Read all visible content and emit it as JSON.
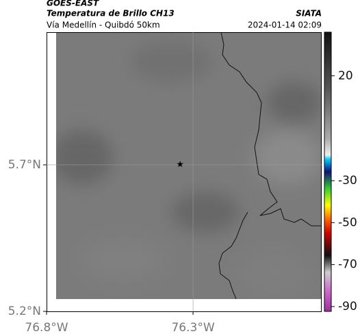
{
  "header": {
    "title": "GOES-EAST",
    "subtitle": "Temperatura de Brillo CH13",
    "route": "Vía Medellín - Quibdó 50km",
    "source": "SIATA",
    "timestamp": "2024-01-14 02:09"
  },
  "map": {
    "xlim": [
      -76.8,
      -75.861
    ],
    "ylim": [
      5.2,
      6.153
    ],
    "xticks": [
      {
        "value": -76.8,
        "label": "76.8°W"
      },
      {
        "value": -76.3,
        "label": "76.3°W"
      }
    ],
    "yticks": [
      {
        "value": 5.2,
        "label": "5.2°N"
      },
      {
        "value": 5.7,
        "label": "5.7°N"
      }
    ],
    "grid": true,
    "marker": {
      "lon": -76.344,
      "lat": 5.702
    }
  },
  "colorbar": {
    "range": [
      40.8,
      -92.3
    ],
    "ticks": [
      20,
      -30,
      -50,
      -70,
      -90
    ]
  }
}
